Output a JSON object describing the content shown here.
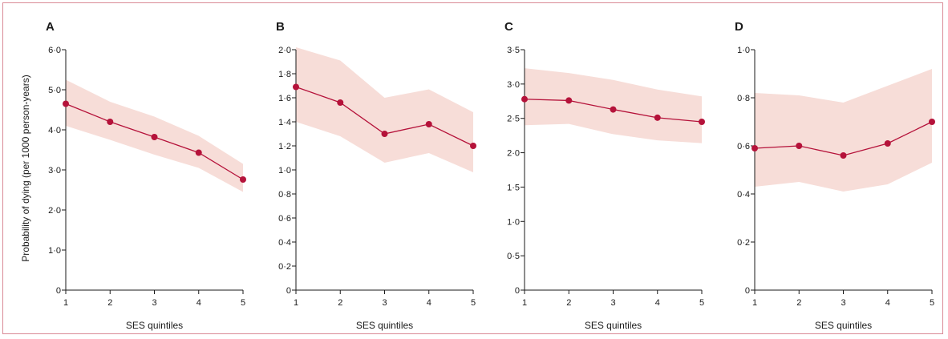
{
  "figure": {
    "ylabel": "Probability of dying (per 1000 person-years)",
    "border_color": "#d98a96",
    "line_color": "#b5123a",
    "band_color": "#f7ddd8"
  },
  "chart_data": [
    {
      "type": "line",
      "panel": "A",
      "xlabel": "SES quintiles",
      "x": [
        1,
        2,
        3,
        4,
        5
      ],
      "x_tick_labels": [
        "1",
        "2",
        "3",
        "4",
        "5"
      ],
      "y": [
        4.65,
        4.2,
        3.82,
        3.43,
        2.76
      ],
      "ci_lower": [
        4.1,
        3.75,
        3.38,
        3.05,
        2.45
      ],
      "ci_upper": [
        5.25,
        4.7,
        4.33,
        3.85,
        3.15
      ],
      "ylim": [
        0,
        6.0
      ],
      "y_ticks": [
        0,
        1,
        2,
        3,
        4,
        5,
        6
      ],
      "y_tick_labels": [
        "0",
        "1·0",
        "2·0",
        "3·0",
        "4·0",
        "5·0",
        "6·0"
      ]
    },
    {
      "type": "line",
      "panel": "B",
      "xlabel": "SES quintiles",
      "x": [
        1,
        2,
        3,
        4,
        5
      ],
      "x_tick_labels": [
        "1",
        "2",
        "3",
        "4",
        "5"
      ],
      "y": [
        1.69,
        1.56,
        1.3,
        1.38,
        1.2
      ],
      "ci_lower": [
        1.4,
        1.28,
        1.06,
        1.14,
        0.98
      ],
      "ci_upper": [
        2.02,
        1.91,
        1.6,
        1.67,
        1.48
      ],
      "ylim": [
        0,
        2.0
      ],
      "y_ticks": [
        0,
        0.2,
        0.4,
        0.6,
        0.8,
        1.0,
        1.2,
        1.4,
        1.6,
        1.8,
        2.0
      ],
      "y_tick_labels": [
        "0",
        "0·2",
        "0·4",
        "0·6",
        "0·8",
        "1·0",
        "1·2",
        "1·4",
        "1·6",
        "1·8",
        "2·0"
      ]
    },
    {
      "type": "line",
      "panel": "C",
      "xlabel": "SES quintiles",
      "x": [
        1,
        2,
        3,
        4,
        5
      ],
      "x_tick_labels": [
        "1",
        "2",
        "3",
        "4",
        "5"
      ],
      "y": [
        2.78,
        2.76,
        2.63,
        2.51,
        2.45
      ],
      "ci_lower": [
        2.4,
        2.42,
        2.27,
        2.18,
        2.14
      ],
      "ci_upper": [
        3.23,
        3.16,
        3.06,
        2.92,
        2.82
      ],
      "ylim": [
        0,
        3.5
      ],
      "y_ticks": [
        0,
        0.5,
        1.0,
        1.5,
        2.0,
        2.5,
        3.0,
        3.5
      ],
      "y_tick_labels": [
        "0",
        "0·5",
        "1·0",
        "1·5",
        "2·0",
        "2·5",
        "3·0",
        "3·5"
      ]
    },
    {
      "type": "line",
      "panel": "D",
      "xlabel": "SES quintiles",
      "x": [
        1,
        2,
        3,
        4,
        5
      ],
      "x_tick_labels": [
        "1",
        "2",
        "3",
        "4",
        "5"
      ],
      "y": [
        0.59,
        0.6,
        0.56,
        0.61,
        0.7
      ],
      "ci_lower": [
        0.43,
        0.45,
        0.41,
        0.44,
        0.53
      ],
      "ci_upper": [
        0.82,
        0.81,
        0.78,
        0.85,
        0.92
      ],
      "ylim": [
        0,
        1.0
      ],
      "y_ticks": [
        0,
        0.2,
        0.4,
        0.6,
        0.8,
        1.0
      ],
      "y_tick_labels": [
        "0",
        "0·2",
        "0·4",
        "0·6",
        "0·8",
        "1·0"
      ]
    }
  ]
}
